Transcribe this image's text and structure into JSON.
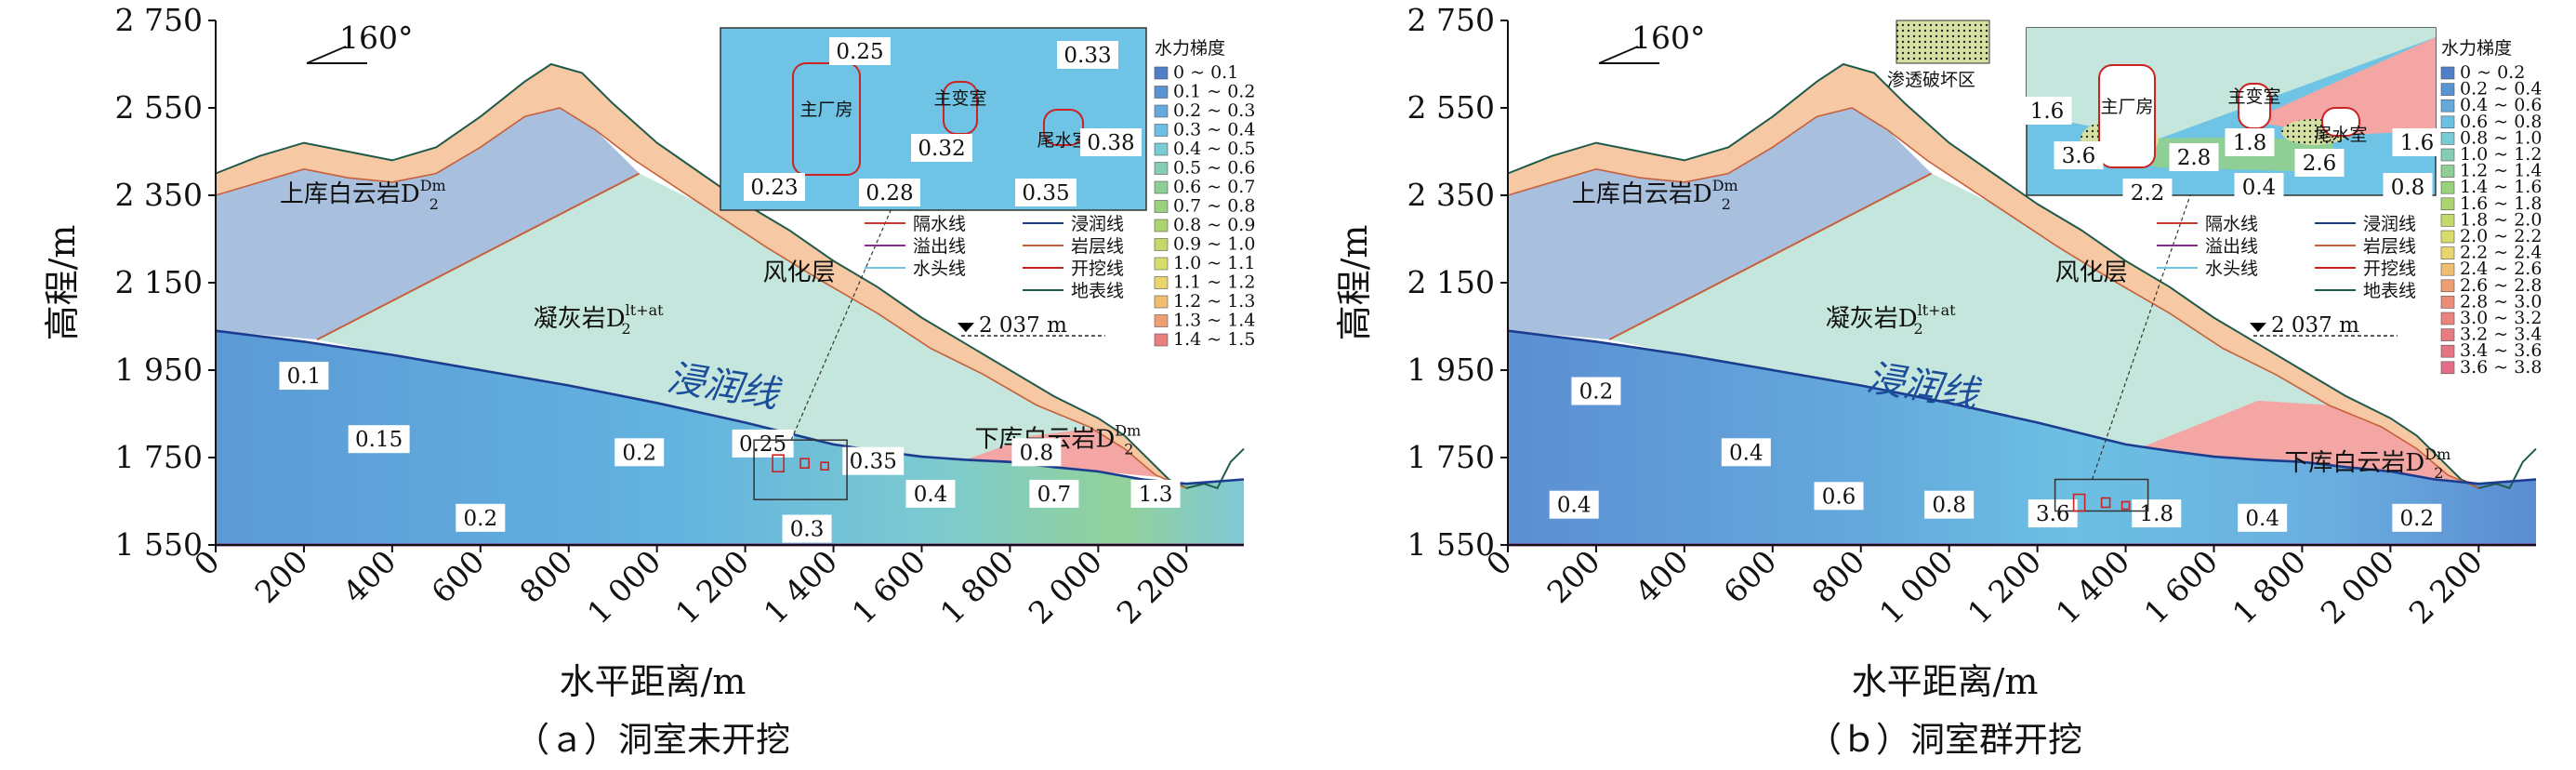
{
  "panels": [
    {
      "id": "a",
      "caption": "（ａ）洞室未开挖",
      "y_axis_title": "高程/m",
      "x_axis_title": "水平距离/m",
      "y_ticks": [
        "2 750",
        "2 550",
        "2 350",
        "2 150",
        "1 950",
        "1 750",
        "1 550"
      ],
      "x_ticks": [
        "0",
        "200",
        "400",
        "600",
        "800",
        "1 000",
        "1 200",
        "1 400",
        "1 600",
        "1 800",
        "2 000",
        "2 200"
      ],
      "direction": "160°",
      "rock_upper": "上库白云岩D",
      "rock_upper_sub": "2",
      "rock_upper_sup": "Dm",
      "rock_tuff": "凝灰岩D",
      "rock_tuff_sub": "2",
      "rock_tuff_sup": "lt+at",
      "rock_lower": "下库白云岩D",
      "rock_lower_sub": "2",
      "rock_lower_sup": "Dm",
      "weathered": "风化层",
      "phreatic": "浸润线",
      "water_level": "2 037 m",
      "legend_title": "水力梯度",
      "legend_items": [
        {
          "label": "0 ~ 0.1",
          "color": "#4f7fc6"
        },
        {
          "label": "0.1 ~ 0.2",
          "color": "#5a93d2"
        },
        {
          "label": "0.2 ~ 0.3",
          "color": "#63a9dc"
        },
        {
          "label": "0.3 ~ 0.4",
          "color": "#6bbfe3"
        },
        {
          "label": "0.4 ~ 0.5",
          "color": "#79cbd4"
        },
        {
          "label": "0.5 ~ 0.6",
          "color": "#86cdb6"
        },
        {
          "label": "0.6 ~ 0.7",
          "color": "#8fcf95"
        },
        {
          "label": "0.7 ~ 0.8",
          "color": "#9ad17c"
        },
        {
          "label": "0.8 ~ 0.9",
          "color": "#add56f"
        },
        {
          "label": "0.9 ~ 1.0",
          "color": "#c3d96a"
        },
        {
          "label": "1.0 ~ 1.1",
          "color": "#d7dc6a"
        },
        {
          "label": "1.1 ~ 1.2",
          "color": "#e9d56e"
        },
        {
          "label": "1.2 ~ 1.3",
          "color": "#efbe70"
        },
        {
          "label": "1.3 ~ 1.4",
          "color": "#ee9f72"
        },
        {
          "label": "1.4 ~ 1.5",
          "color": "#e97f7f"
        }
      ],
      "line_legend": [
        "隔水线",
        "溢出线",
        "水头线",
        "浸润线",
        "岩层线",
        "开挖线",
        "地表线"
      ],
      "contour_labels": [
        {
          "text": "0.1",
          "x": 200,
          "y": 1935
        },
        {
          "text": "0.15",
          "x": 370,
          "y": 1790
        },
        {
          "text": "0.2",
          "x": 960,
          "y": 1760
        },
        {
          "text": "0.2",
          "x": 600,
          "y": 1610
        },
        {
          "text": "0.25",
          "x": 1240,
          "y": 1780
        },
        {
          "text": "0.35",
          "x": 1490,
          "y": 1740
        },
        {
          "text": "0.3",
          "x": 1340,
          "y": 1585
        },
        {
          "text": "0.4",
          "x": 1620,
          "y": 1665
        },
        {
          "text": "0.8",
          "x": 1860,
          "y": 1760
        },
        {
          "text": "0.7",
          "x": 1900,
          "y": 1665
        },
        {
          "text": "1.3",
          "x": 2130,
          "y": 1665
        }
      ],
      "inset_labels": [
        "0.25",
        "0.33",
        "0.32",
        "0.38",
        "0.23",
        "0.28",
        "0.35"
      ],
      "inset_rooms": [
        "主厂房",
        "主变室",
        "尾水室"
      ],
      "seepage_legend": ""
    },
    {
      "id": "b",
      "caption": "（ｂ）洞室群开挖",
      "y_axis_title": "高程/m",
      "x_axis_title": "水平距离/m",
      "y_ticks": [
        "2 750",
        "2 550",
        "2 350",
        "2 150",
        "1 950",
        "1 750",
        "1 550"
      ],
      "x_ticks": [
        "0",
        "200",
        "400",
        "600",
        "800",
        "1 000",
        "1 200",
        "1 400",
        "1 600",
        "1 800",
        "2 000",
        "2 200"
      ],
      "direction": "160°",
      "rock_upper": "上库白云岩D",
      "rock_upper_sub": "2",
      "rock_upper_sup": "Dm",
      "rock_tuff": "凝灰岩D",
      "rock_tuff_sub": "2",
      "rock_tuff_sup": "lt+at",
      "rock_lower": "下库白云岩D",
      "rock_lower_sub": "2",
      "rock_lower_sup": "Dm",
      "weathered": "风化层",
      "phreatic": "浸润线",
      "water_level": "2 037 m",
      "legend_title": "水力梯度",
      "legend_items": [
        {
          "label": "0 ~ 0.2",
          "color": "#4f7fc6"
        },
        {
          "label": "0.2 ~ 0.4",
          "color": "#5a93d2"
        },
        {
          "label": "0.4 ~ 0.6",
          "color": "#63a9dc"
        },
        {
          "label": "0.6 ~ 0.8",
          "color": "#6bbfe3"
        },
        {
          "label": "0.8 ~ 1.0",
          "color": "#79cbd4"
        },
        {
          "label": "1.0 ~ 1.2",
          "color": "#86cdb6"
        },
        {
          "label": "1.2 ~ 1.4",
          "color": "#8fcf95"
        },
        {
          "label": "1.4 ~ 1.6",
          "color": "#9ad17c"
        },
        {
          "label": "1.6 ~ 1.8",
          "color": "#add56f"
        },
        {
          "label": "1.8 ~ 2.0",
          "color": "#c3d96a"
        },
        {
          "label": "2.0 ~ 2.2",
          "color": "#d7dc6a"
        },
        {
          "label": "2.2 ~ 2.4",
          "color": "#e9d56e"
        },
        {
          "label": "2.4 ~ 2.6",
          "color": "#efbe70"
        },
        {
          "label": "2.6 ~ 2.8",
          "color": "#ee9f72"
        },
        {
          "label": "2.8 ~ 3.0",
          "color": "#eb8c78"
        },
        {
          "label": "3.0 ~ 3.2",
          "color": "#e9837c"
        },
        {
          "label": "3.2 ~ 3.4",
          "color": "#e77c80"
        },
        {
          "label": "3.4 ~ 3.6",
          "color": "#e57584"
        },
        {
          "label": "3.6 ~ 3.8",
          "color": "#e36e88"
        }
      ],
      "line_legend": [
        "隔水线",
        "溢出线",
        "水头线",
        "浸润线",
        "岩层线",
        "开挖线",
        "地表线"
      ],
      "contour_labels": [
        {
          "text": "0.2",
          "x": 200,
          "y": 1900
        },
        {
          "text": "0.4",
          "x": 540,
          "y": 1760
        },
        {
          "text": "0.4",
          "x": 150,
          "y": 1640
        },
        {
          "text": "0.6",
          "x": 750,
          "y": 1660
        },
        {
          "text": "0.8",
          "x": 1000,
          "y": 1640
        },
        {
          "text": "3.6",
          "x": 1235,
          "y": 1620
        },
        {
          "text": "1.8",
          "x": 1470,
          "y": 1620
        },
        {
          "text": "0.4",
          "x": 1710,
          "y": 1610
        },
        {
          "text": "0.2",
          "x": 2060,
          "y": 1610
        }
      ],
      "inset_labels": [
        "1.6",
        "1.8",
        "1.6",
        "3.6",
        "2.8",
        "2.6",
        "0.4",
        "0.8",
        "2.2"
      ],
      "inset_rooms": [
        "主厂房",
        "主变室",
        "尾水室"
      ],
      "seepage_legend": "渗透破坏区"
    }
  ]
}
